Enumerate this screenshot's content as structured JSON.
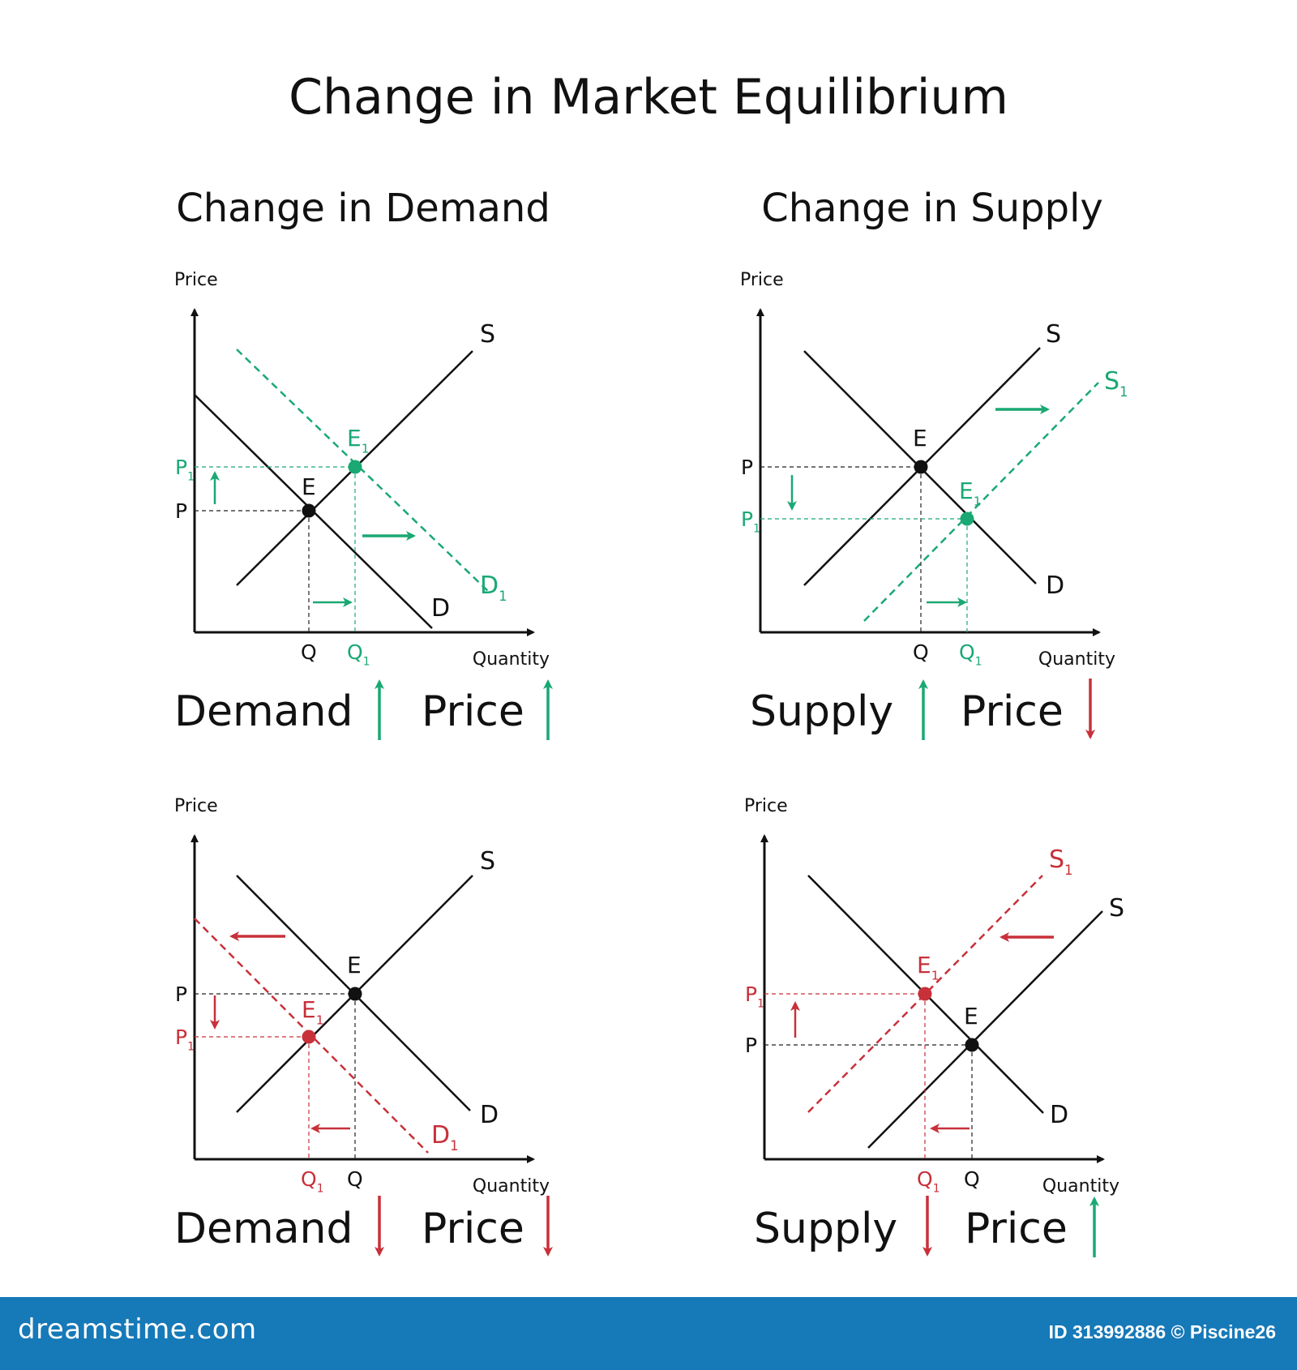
{
  "title": "Change in Market Equilibrium",
  "column_headings": [
    "Change in Demand",
    "Change in Supply"
  ],
  "colors": {
    "green": "#1aa874",
    "red": "#c8303a",
    "black": "#111111",
    "footer": "#1679b8"
  },
  "footer": {
    "brand": "dreamstime.com",
    "id_text": "ID 313992886 © Piscine26"
  },
  "chart_data": [
    {
      "panel": "demand-increase",
      "type": "line",
      "xlabel": "Quantity",
      "ylabel": "Price",
      "shift_color": "green",
      "curves": [
        {
          "name": "S",
          "style": "solid",
          "color": "black"
        },
        {
          "name": "D",
          "style": "solid",
          "color": "black"
        },
        {
          "name": "D",
          "sub": "1",
          "style": "dashed",
          "color": "green"
        }
      ],
      "points": [
        {
          "name": "E",
          "sub": "",
          "color": "black",
          "price": "P",
          "price_sub": "",
          "qty": "Q",
          "qty_sub": ""
        },
        {
          "name": "E",
          "sub": "1",
          "color": "green",
          "price": "P",
          "price_sub": "1",
          "qty": "Q",
          "qty_sub": "1"
        }
      ],
      "caption": {
        "left": "Demand",
        "left_dir": "up",
        "right": "Price",
        "right_dir": "up"
      }
    },
    {
      "panel": "supply-increase",
      "type": "line",
      "xlabel": "Quantity",
      "ylabel": "Price",
      "shift_color": "green",
      "curves": [
        {
          "name": "S",
          "style": "solid",
          "color": "black"
        },
        {
          "name": "S",
          "sub": "1",
          "style": "dashed",
          "color": "green"
        },
        {
          "name": "D",
          "style": "solid",
          "color": "black"
        }
      ],
      "points": [
        {
          "name": "E",
          "sub": "",
          "color": "black",
          "price": "P",
          "price_sub": "",
          "qty": "Q",
          "qty_sub": ""
        },
        {
          "name": "E",
          "sub": "1",
          "color": "green",
          "price": "P",
          "price_sub": "1",
          "qty": "Q",
          "qty_sub": "1"
        }
      ],
      "caption": {
        "left": "Supply",
        "left_dir": "up",
        "right": "Price",
        "right_dir": "down"
      }
    },
    {
      "panel": "demand-decrease",
      "type": "line",
      "xlabel": "Quantity",
      "ylabel": "Price",
      "shift_color": "red",
      "curves": [
        {
          "name": "S",
          "style": "solid",
          "color": "black"
        },
        {
          "name": "D",
          "style": "solid",
          "color": "black"
        },
        {
          "name": "D",
          "sub": "1",
          "style": "dashed",
          "color": "red"
        }
      ],
      "points": [
        {
          "name": "E",
          "sub": "",
          "color": "black",
          "price": "P",
          "price_sub": "",
          "qty": "Q",
          "qty_sub": ""
        },
        {
          "name": "E",
          "sub": "1",
          "color": "red",
          "price": "P",
          "price_sub": "1",
          "qty": "Q",
          "qty_sub": "1"
        }
      ],
      "caption": {
        "left": "Demand",
        "left_dir": "down",
        "right": "Price",
        "right_dir": "down"
      }
    },
    {
      "panel": "supply-decrease",
      "type": "line",
      "xlabel": "Quantity",
      "ylabel": "Price",
      "shift_color": "red",
      "curves": [
        {
          "name": "S",
          "style": "solid",
          "color": "black"
        },
        {
          "name": "S",
          "sub": "1",
          "style": "dashed",
          "color": "red"
        },
        {
          "name": "D",
          "style": "solid",
          "color": "black"
        }
      ],
      "points": [
        {
          "name": "E",
          "sub": "",
          "color": "black",
          "price": "P",
          "price_sub": "",
          "qty": "Q",
          "qty_sub": ""
        },
        {
          "name": "E",
          "sub": "1",
          "color": "red",
          "price": "P",
          "price_sub": "1",
          "qty": "Q",
          "qty_sub": "1"
        }
      ],
      "caption": {
        "left": "Supply",
        "left_dir": "down",
        "right": "Price",
        "right_dir": "up"
      }
    }
  ]
}
